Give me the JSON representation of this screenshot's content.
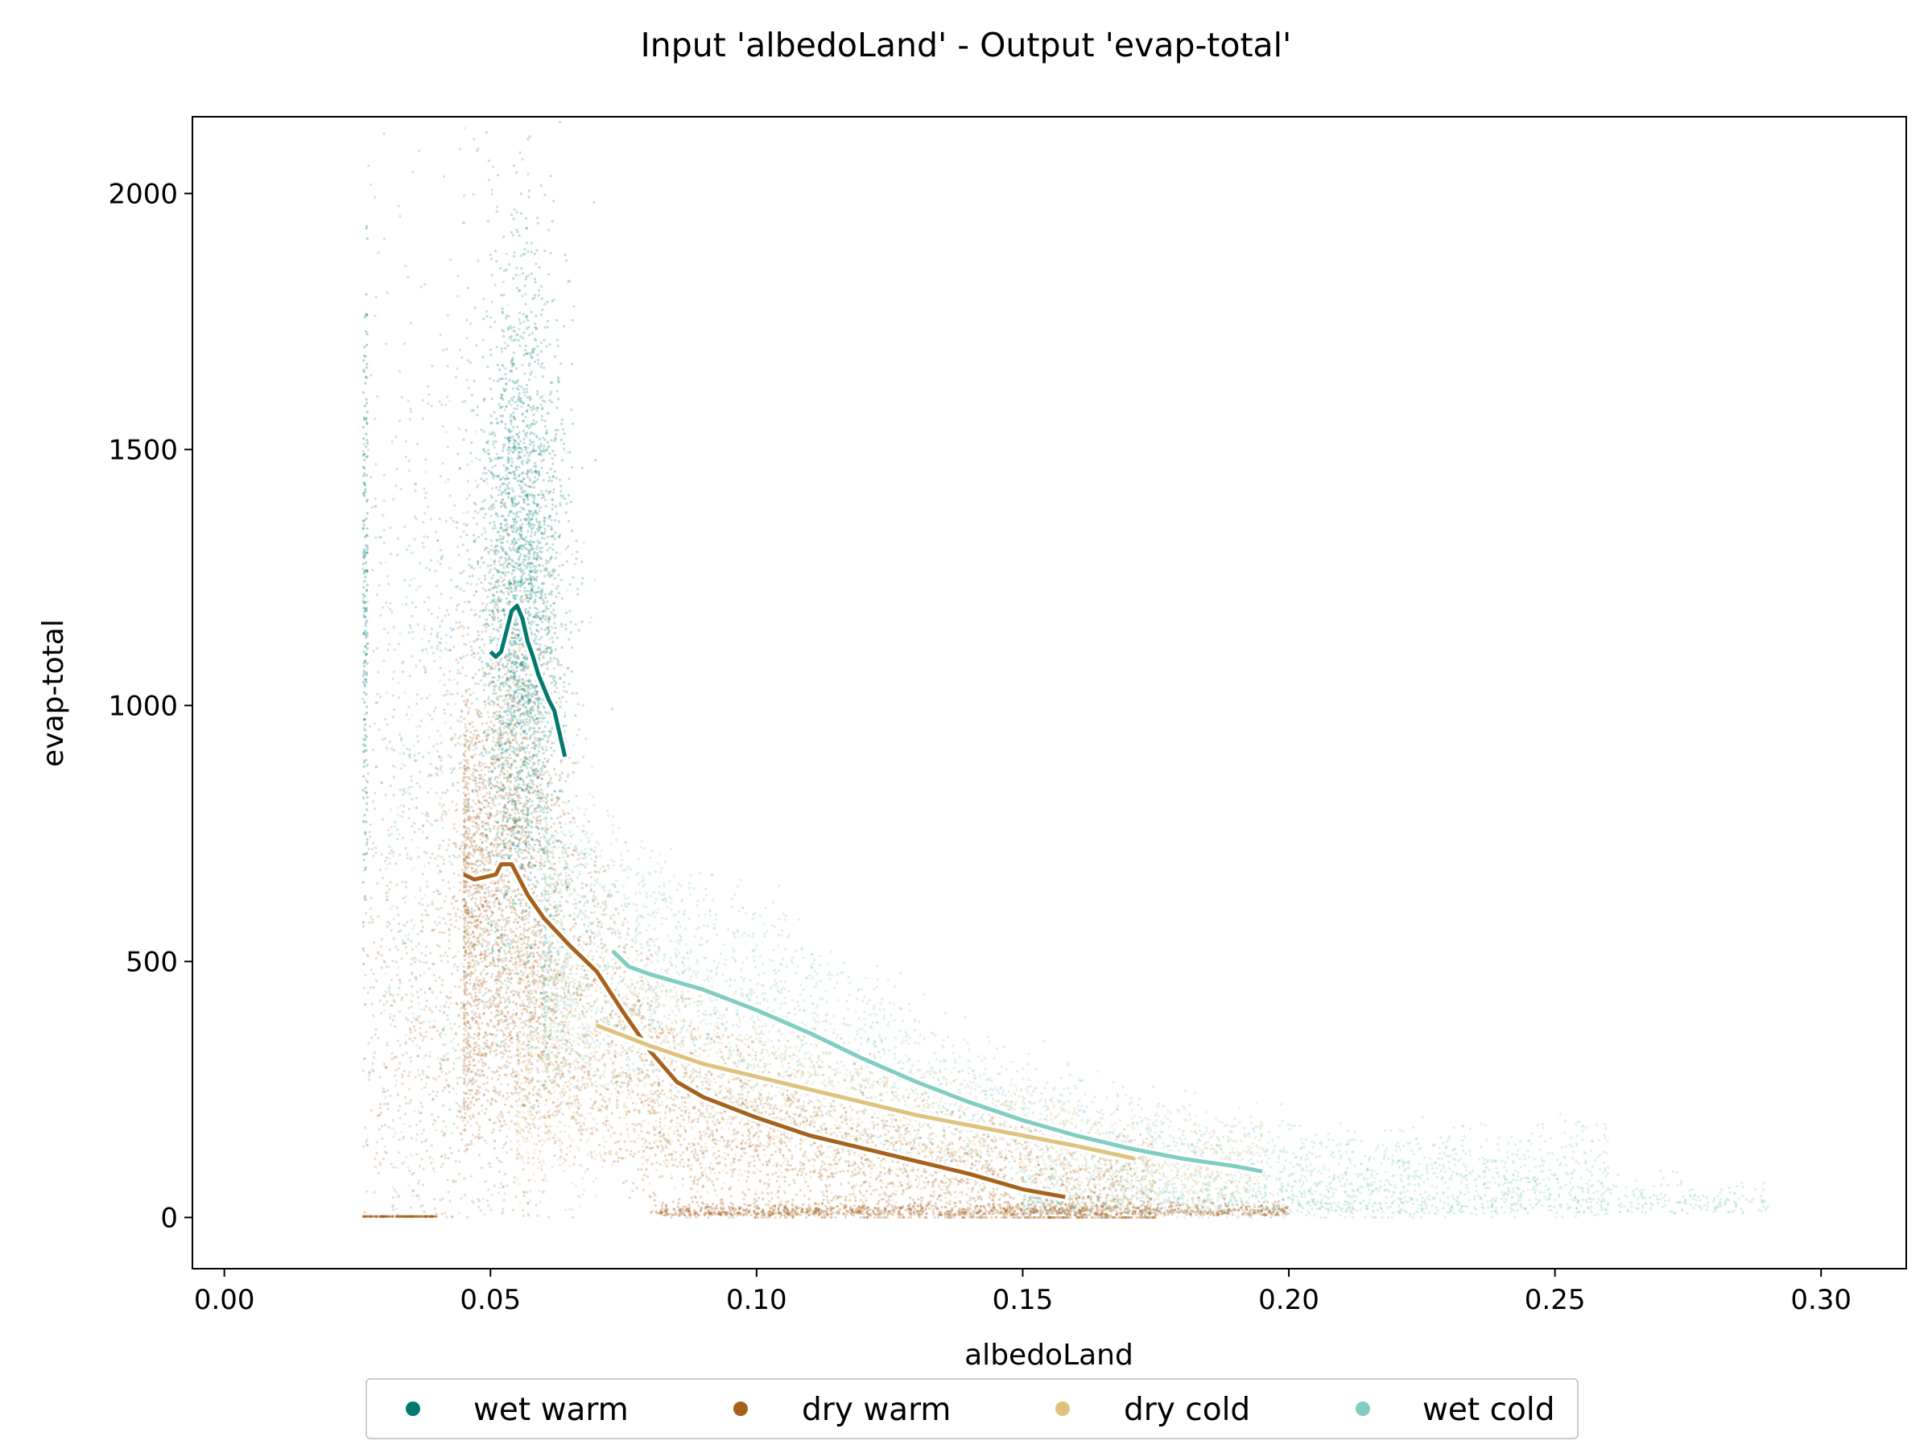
{
  "chart_data": {
    "type": "scatter",
    "title": "Input 'albedoLand' - Output 'evap-total'",
    "xlabel": "albedoLand",
    "ylabel": "evap-total",
    "xlim": [
      -0.006,
      0.316
    ],
    "ylim": [
      -100,
      2150
    ],
    "x_ticks": [
      {
        "value": 0.0,
        "label": "0.00"
      },
      {
        "value": 0.05,
        "label": "0.05"
      },
      {
        "value": 0.1,
        "label": "0.10"
      },
      {
        "value": 0.15,
        "label": "0.15"
      },
      {
        "value": 0.2,
        "label": "0.20"
      },
      {
        "value": 0.25,
        "label": "0.25"
      },
      {
        "value": 0.3,
        "label": "0.30"
      }
    ],
    "y_ticks": [
      {
        "value": 0,
        "label": "0"
      },
      {
        "value": 500,
        "label": "500"
      },
      {
        "value": 1000,
        "label": "1000"
      },
      {
        "value": 1500,
        "label": "1500"
      },
      {
        "value": 2000,
        "label": "2000"
      }
    ],
    "grid": false,
    "legend_position": "bottom-center",
    "series": [
      {
        "name": "wet warm",
        "color": "#01796f",
        "scatter_color": "#168a7e",
        "trend": [
          [
            0.05,
            1105
          ],
          [
            0.051,
            1095
          ],
          [
            0.052,
            1105
          ],
          [
            0.053,
            1145
          ],
          [
            0.054,
            1185
          ],
          [
            0.055,
            1195
          ],
          [
            0.056,
            1170
          ],
          [
            0.057,
            1125
          ],
          [
            0.058,
            1095
          ],
          [
            0.059,
            1060
          ],
          [
            0.06,
            1035
          ],
          [
            0.061,
            1010
          ],
          [
            0.062,
            990
          ],
          [
            0.063,
            945
          ],
          [
            0.064,
            900
          ]
        ]
      },
      {
        "name": "dry warm",
        "color": "#a6611a",
        "scatter_color": "#a6611a",
        "trend": [
          [
            0.045,
            670
          ],
          [
            0.047,
            660
          ],
          [
            0.049,
            665
          ],
          [
            0.051,
            670
          ],
          [
            0.052,
            690
          ],
          [
            0.054,
            690
          ],
          [
            0.055,
            670
          ],
          [
            0.057,
            630
          ],
          [
            0.06,
            585
          ],
          [
            0.065,
            530
          ],
          [
            0.07,
            480
          ],
          [
            0.075,
            400
          ],
          [
            0.08,
            325
          ],
          [
            0.085,
            265
          ],
          [
            0.09,
            235
          ],
          [
            0.1,
            195
          ],
          [
            0.11,
            160
          ],
          [
            0.12,
            135
          ],
          [
            0.13,
            110
          ],
          [
            0.14,
            85
          ],
          [
            0.15,
            55
          ],
          [
            0.158,
            40
          ]
        ]
      },
      {
        "name": "dry cold",
        "color": "#dfc27d",
        "scatter_color": "#dcb878",
        "trend": [
          [
            0.07,
            375
          ],
          [
            0.075,
            355
          ],
          [
            0.08,
            335
          ],
          [
            0.09,
            300
          ],
          [
            0.1,
            275
          ],
          [
            0.11,
            250
          ],
          [
            0.12,
            225
          ],
          [
            0.13,
            200
          ],
          [
            0.14,
            180
          ],
          [
            0.15,
            160
          ],
          [
            0.16,
            140
          ],
          [
            0.171,
            115
          ]
        ]
      },
      {
        "name": "wet cold",
        "color": "#80cdc1",
        "scatter_color": "#80cdc1",
        "trend": [
          [
            0.073,
            520
          ],
          [
            0.076,
            490
          ],
          [
            0.08,
            475
          ],
          [
            0.09,
            445
          ],
          [
            0.1,
            405
          ],
          [
            0.11,
            360
          ],
          [
            0.12,
            310
          ],
          [
            0.13,
            265
          ],
          [
            0.14,
            225
          ],
          [
            0.15,
            190
          ],
          [
            0.16,
            160
          ],
          [
            0.17,
            135
          ],
          [
            0.18,
            115
          ],
          [
            0.19,
            100
          ],
          [
            0.195,
            90
          ]
        ]
      }
    ]
  }
}
